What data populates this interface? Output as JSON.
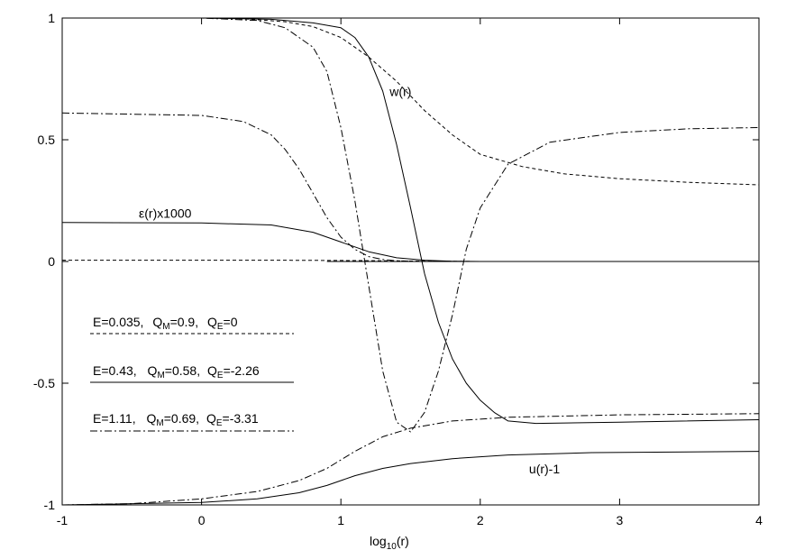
{
  "chart_data": {
    "type": "line",
    "xlabel": {
      "main": "log",
      "sub": "10",
      "rest": "(r)"
    },
    "xlim": [
      -1,
      4
    ],
    "ylim": [
      -1,
      1
    ],
    "xticks": [
      -1,
      0,
      1,
      2,
      3,
      4
    ],
    "xtick_labels": [
      "-1",
      "0",
      "1",
      "2",
      "3",
      "4"
    ],
    "yticks": [
      -1,
      -0.5,
      0,
      0.5,
      1
    ],
    "ytick_labels": [
      "-1",
      "-0.5",
      "0",
      "0.5",
      "1"
    ],
    "grid": false,
    "legend_position": "left",
    "annotations": {
      "w": {
        "text": "w(r)",
        "x": 1.35,
        "y": 0.68
      },
      "eps": {
        "text": "ε(r)x1000",
        "x": -0.45,
        "y": 0.18
      },
      "u": {
        "text": "u(r)-1",
        "x": 2.35,
        "y": -0.87
      }
    },
    "series": [
      {
        "legend": {
          "E": "E=0.035,",
          "QM_label": "Q",
          "QM_sub": "M",
          "QM_val": "=0.9,",
          "QE_label": "Q",
          "QE_sub": "E",
          "QE_val": "=0"
        },
        "dash": "dashed",
        "curves": [
          {
            "role": "w",
            "x": [
              -1,
              0,
              0.3,
              0.6,
              0.8,
              1.0,
              1.2,
              1.4,
              1.6,
              1.8,
              2.0,
              2.3,
              2.6,
              3.0,
              3.5,
              4.0
            ],
            "y": [
              1,
              1,
              0.997,
              0.985,
              0.965,
              0.92,
              0.84,
              0.74,
              0.62,
              0.52,
              0.44,
              0.39,
              0.36,
              0.34,
              0.325,
              0.315
            ]
          },
          {
            "role": "epsilon",
            "x": [
              -1,
              0,
              0.5,
              1.0,
              1.3,
              1.5,
              1.7,
              2.0,
              3.0,
              4.0
            ],
            "y": [
              0.005,
              0.005,
              0.005,
              0.004,
              0.003,
              0.002,
              0.001,
              0,
              0,
              0
            ]
          }
        ]
      },
      {
        "legend": {
          "E": "E=0.43,",
          "QM_label": "Q",
          "QM_sub": "M",
          "QM_val": "=0.58,",
          "QE_label": "Q",
          "QE_sub": "E",
          "QE_val": "=-2.26"
        },
        "dash": "solid",
        "curves": [
          {
            "role": "w",
            "x": [
              -1,
              0,
              0.5,
              0.8,
              1.0,
              1.1,
              1.2,
              1.3,
              1.4,
              1.5,
              1.6,
              1.7,
              1.8,
              1.9,
              2.0,
              2.1,
              2.2,
              2.4,
              3.0,
              4.0
            ],
            "y": [
              1,
              1,
              0.995,
              0.98,
              0.96,
              0.92,
              0.84,
              0.7,
              0.48,
              0.22,
              -0.05,
              -0.25,
              -0.4,
              -0.5,
              -0.57,
              -0.62,
              -0.655,
              -0.665,
              -0.66,
              -0.65
            ]
          },
          {
            "role": "u-1",
            "x": [
              -1,
              0,
              0.4,
              0.7,
              0.9,
              1.1,
              1.3,
              1.5,
              1.8,
              2.2,
              2.8,
              4.0
            ],
            "y": [
              -1,
              -0.99,
              -0.975,
              -0.95,
              -0.92,
              -0.88,
              -0.85,
              -0.83,
              -0.81,
              -0.795,
              -0.785,
              -0.78
            ]
          },
          {
            "role": "epsilon",
            "x": [
              -1,
              0,
              0.5,
              0.8,
              1.0,
              1.2,
              1.4,
              1.6,
              1.8,
              2.0,
              4.0
            ],
            "y": [
              0.16,
              0.158,
              0.15,
              0.12,
              0.08,
              0.04,
              0.015,
              0.005,
              0.001,
              0,
              0
            ]
          }
        ]
      },
      {
        "legend": {
          "E": "E=1.11,",
          "QM_label": "Q",
          "QM_sub": "M",
          "QM_val": "=0.69,",
          "QE_label": "Q",
          "QE_sub": "E",
          "QE_val": "=-3.31"
        },
        "dash": "dashdot",
        "curves": [
          {
            "role": "w",
            "x": [
              -1,
              0,
              0.4,
              0.6,
              0.8,
              0.9,
              1.0,
              1.1,
              1.2,
              1.3,
              1.4,
              1.5,
              1.6,
              1.7,
              1.8,
              1.9,
              2.0,
              2.2,
              2.5,
              3.0,
              3.5,
              4.0
            ],
            "y": [
              1,
              1,
              0.99,
              0.96,
              0.88,
              0.78,
              0.55,
              0.25,
              -0.1,
              -0.45,
              -0.66,
              -0.7,
              -0.62,
              -0.45,
              -0.22,
              0.05,
              0.22,
              0.4,
              0.49,
              0.53,
              0.545,
              0.55
            ]
          },
          {
            "role": "u-1",
            "x": [
              -1,
              -0.5,
              0,
              0.4,
              0.7,
              0.9,
              1.1,
              1.3,
              1.5,
              1.8,
              2.2,
              3.0,
              4.0
            ],
            "y": [
              -1,
              -0.995,
              -0.975,
              -0.945,
              -0.9,
              -0.85,
              -0.78,
              -0.72,
              -0.685,
              -0.655,
              -0.64,
              -0.63,
              -0.625
            ]
          },
          {
            "role": "epsilon",
            "x": [
              -1,
              0,
              0.3,
              0.5,
              0.6,
              0.7,
              0.8,
              0.9,
              1.0,
              1.1,
              1.2,
              1.3,
              1.4,
              1.5,
              1.6,
              1.8,
              4.0
            ],
            "y": [
              0.61,
              0.6,
              0.575,
              0.52,
              0.46,
              0.38,
              0.28,
              0.18,
              0.1,
              0.05,
              0.02,
              0.008,
              0.003,
              0.001,
              0,
              0,
              0
            ]
          }
        ]
      }
    ]
  }
}
